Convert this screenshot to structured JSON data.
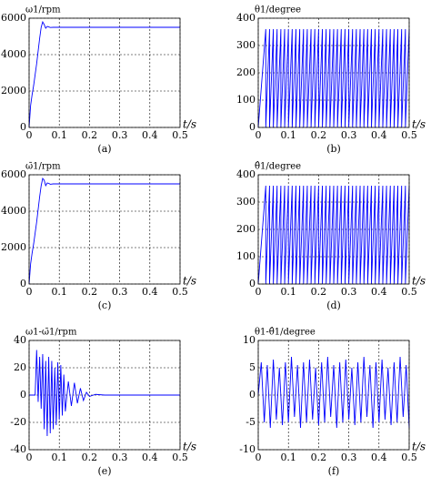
{
  "chart_data": [
    {
      "type": "line",
      "title": "ω1/rpm",
      "caption": "(a)",
      "xlabel": "t/s",
      "x": [
        0,
        0.005,
        0.01,
        0.015,
        0.02,
        0.025,
        0.03,
        0.035,
        0.04,
        0.045,
        0.05,
        0.055,
        0.06,
        0.065,
        0.07,
        0.08,
        0.09,
        0.1,
        0.2,
        0.3,
        0.4,
        0.5
      ],
      "series": [
        {
          "color": "#0000ff",
          "values": [
            0,
            1200,
            1800,
            2300,
            2900,
            3500,
            4200,
            4900,
            5500,
            5800,
            5650,
            5450,
            5550,
            5520,
            5490,
            5500,
            5500,
            5500,
            5500,
            5500,
            5500,
            5500
          ]
        }
      ],
      "xlim": [
        0,
        0.5
      ],
      "xticks": [
        0,
        0.1,
        0.2,
        0.3,
        0.4,
        0.5
      ],
      "ylim": [
        0,
        6000
      ],
      "yticks": [
        0,
        2000,
        4000,
        6000
      ],
      "grid": true
    },
    {
      "type": "line",
      "title": "θ1/degree",
      "caption": "(b)",
      "xlabel": "t/s",
      "x": [
        0,
        0.025,
        0.025,
        0.0375,
        0.0375,
        0.05,
        0.05,
        0.0625,
        0.0625,
        0.075,
        0.075,
        0.0875,
        0.0875,
        0.1,
        0.1,
        0.1125,
        0.1125,
        0.125,
        0.125,
        0.1375,
        0.1375,
        0.15,
        0.15,
        0.1625,
        0.1625,
        0.175,
        0.175,
        0.1875,
        0.1875,
        0.2,
        0.2,
        0.2125,
        0.2125,
        0.225,
        0.225,
        0.2375,
        0.2375,
        0.25,
        0.25,
        0.2625,
        0.2625,
        0.275,
        0.275,
        0.2875,
        0.2875,
        0.3,
        0.3,
        0.3125,
        0.3125,
        0.325,
        0.325,
        0.3375,
        0.3375,
        0.35,
        0.35,
        0.3625,
        0.3625,
        0.375,
        0.375,
        0.3875,
        0.3875,
        0.4,
        0.4,
        0.4125,
        0.4125,
        0.425,
        0.425,
        0.4375,
        0.4375,
        0.45,
        0.45,
        0.4625,
        0.4625,
        0.475,
        0.475,
        0.4875,
        0.4875,
        0.5
      ],
      "series": [
        {
          "color": "#0000ff",
          "values": [
            0,
            360,
            0,
            360,
            0,
            360,
            0,
            360,
            0,
            360,
            0,
            360,
            0,
            360,
            0,
            360,
            0,
            360,
            0,
            360,
            0,
            360,
            0,
            360,
            0,
            360,
            0,
            360,
            0,
            360,
            0,
            360,
            0,
            360,
            0,
            360,
            0,
            360,
            0,
            360,
            0,
            360,
            0,
            360,
            0,
            360,
            0,
            360,
            0,
            360,
            0,
            360,
            0,
            360,
            0,
            360,
            0,
            360,
            0,
            360,
            0,
            360,
            0,
            360,
            0,
            360,
            0,
            360,
            0,
            360,
            0,
            360,
            0,
            360,
            0,
            360,
            0,
            360
          ]
        }
      ],
      "xlim": [
        0,
        0.5
      ],
      "xticks": [
        0,
        0.1,
        0.2,
        0.3,
        0.4,
        0.5
      ],
      "ylim": [
        0,
        400
      ],
      "yticks": [
        0,
        100,
        200,
        300,
        400
      ],
      "grid": true
    },
    {
      "type": "line",
      "title": "ω̄1/rpm",
      "caption": "(c)",
      "xlabel": "t/s",
      "x": [
        0,
        0.005,
        0.01,
        0.015,
        0.02,
        0.025,
        0.03,
        0.035,
        0.04,
        0.045,
        0.05,
        0.055,
        0.06,
        0.065,
        0.07,
        0.08,
        0.09,
        0.1,
        0.2,
        0.3,
        0.4,
        0.5
      ],
      "series": [
        {
          "color": "#0000ff",
          "values": [
            0,
            1100,
            1700,
            2200,
            2800,
            3400,
            4100,
            4800,
            5400,
            5800,
            5700,
            5400,
            5550,
            5530,
            5480,
            5500,
            5500,
            5500,
            5500,
            5500,
            5500,
            5500
          ]
        }
      ],
      "xlim": [
        0,
        0.5
      ],
      "xticks": [
        0,
        0.1,
        0.2,
        0.3,
        0.4,
        0.5
      ],
      "ylim": [
        0,
        6000
      ],
      "yticks": [
        0,
        2000,
        4000,
        6000
      ],
      "grid": true
    },
    {
      "type": "line",
      "title": "θ̂1/degree",
      "caption": "(d)",
      "xlabel": "t/s",
      "x": [
        0,
        0.025,
        0.025,
        0.0375,
        0.0375,
        0.05,
        0.05,
        0.0625,
        0.0625,
        0.075,
        0.075,
        0.0875,
        0.0875,
        0.1,
        0.1,
        0.1125,
        0.1125,
        0.125,
        0.125,
        0.1375,
        0.1375,
        0.15,
        0.15,
        0.1625,
        0.1625,
        0.175,
        0.175,
        0.1875,
        0.1875,
        0.2,
        0.2,
        0.2125,
        0.2125,
        0.225,
        0.225,
        0.2375,
        0.2375,
        0.25,
        0.25,
        0.2625,
        0.2625,
        0.275,
        0.275,
        0.2875,
        0.2875,
        0.3,
        0.3,
        0.3125,
        0.3125,
        0.325,
        0.325,
        0.3375,
        0.3375,
        0.35,
        0.35,
        0.3625,
        0.3625,
        0.375,
        0.375,
        0.3875,
        0.3875,
        0.4,
        0.4,
        0.4125,
        0.4125,
        0.425,
        0.425,
        0.4375,
        0.4375,
        0.45,
        0.45,
        0.4625,
        0.4625,
        0.475,
        0.475,
        0.4875,
        0.4875,
        0.5
      ],
      "series": [
        {
          "color": "#0000ff",
          "values": [
            0,
            360,
            0,
            360,
            0,
            360,
            0,
            360,
            0,
            360,
            0,
            360,
            0,
            360,
            0,
            360,
            0,
            360,
            0,
            360,
            0,
            360,
            0,
            360,
            0,
            360,
            0,
            360,
            0,
            360,
            0,
            360,
            0,
            360,
            0,
            360,
            0,
            360,
            0,
            360,
            0,
            360,
            0,
            360,
            0,
            360,
            0,
            360,
            0,
            360,
            0,
            360,
            0,
            360,
            0,
            360,
            0,
            360,
            0,
            360,
            0,
            360,
            0,
            360,
            0,
            360,
            0,
            360,
            0,
            360,
            0,
            360,
            0,
            360,
            0,
            360,
            0,
            360
          ]
        }
      ],
      "xlim": [
        0,
        0.5
      ],
      "xticks": [
        0,
        0.1,
        0.2,
        0.3,
        0.4,
        0.5
      ],
      "ylim": [
        0,
        400
      ],
      "yticks": [
        0,
        100,
        200,
        300,
        400
      ],
      "grid": true
    },
    {
      "type": "line",
      "title": "ω1-ω̄1/rpm",
      "caption": "(e)",
      "xlabel": "t/s",
      "x": [
        0,
        0.02,
        0.025,
        0.03,
        0.035,
        0.04,
        0.045,
        0.05,
        0.055,
        0.06,
        0.065,
        0.07,
        0.075,
        0.08,
        0.085,
        0.09,
        0.095,
        0.1,
        0.105,
        0.11,
        0.115,
        0.12,
        0.13,
        0.14,
        0.15,
        0.16,
        0.17,
        0.18,
        0.19,
        0.2,
        0.22,
        0.25,
        0.3,
        0.4,
        0.5
      ],
      "series": [
        {
          "color": "#0000ff",
          "values": [
            0,
            0,
            33,
            -5,
            28,
            -10,
            30,
            -25,
            25,
            -30,
            28,
            -28,
            25,
            -25,
            20,
            -22,
            24,
            -18,
            22,
            -15,
            15,
            -12,
            10,
            -8,
            9,
            -6,
            5,
            -4,
            2,
            -1,
            0.5,
            0,
            0,
            0,
            0
          ]
        }
      ],
      "xlim": [
        0,
        0.5
      ],
      "xticks": [
        0,
        0.1,
        0.2,
        0.3,
        0.4,
        0.5
      ],
      "ylim": [
        -40,
        40
      ],
      "yticks": [
        -40,
        -20,
        0,
        20,
        40
      ],
      "grid": true
    },
    {
      "type": "line",
      "title": "θ1-θ̂1/degree",
      "caption": "(f)",
      "xlabel": "t/s",
      "x": [
        0,
        0.01,
        0.02,
        0.03,
        0.04,
        0.05,
        0.06,
        0.07,
        0.08,
        0.09,
        0.1,
        0.11,
        0.12,
        0.13,
        0.14,
        0.15,
        0.16,
        0.17,
        0.18,
        0.19,
        0.2,
        0.21,
        0.22,
        0.23,
        0.24,
        0.25,
        0.26,
        0.27,
        0.28,
        0.29,
        0.3,
        0.31,
        0.32,
        0.33,
        0.34,
        0.35,
        0.36,
        0.37,
        0.38,
        0.39,
        0.4,
        0.41,
        0.42,
        0.43,
        0.44,
        0.45,
        0.46,
        0.47,
        0.48,
        0.49,
        0.5
      ],
      "series": [
        {
          "color": "#0000ff",
          "values": [
            0,
            6,
            -5,
            5.5,
            -6,
            6.5,
            -4.5,
            5,
            -5.5,
            6,
            -5,
            7,
            -4,
            5.5,
            -6,
            6,
            -5,
            6.5,
            -4.5,
            5,
            -5.5,
            6,
            -5,
            7,
            -4,
            5.5,
            -6,
            6,
            -5,
            6.5,
            -4.5,
            5,
            -5.5,
            6,
            -5,
            7,
            -4,
            5.5,
            -6,
            6,
            -5,
            6.5,
            -4.5,
            5,
            -5.5,
            6,
            -5,
            7,
            -4,
            5.5,
            -6
          ]
        }
      ],
      "xlim": [
        0,
        0.5
      ],
      "xticks": [
        0,
        0.1,
        0.2,
        0.3,
        0.4,
        0.5
      ],
      "ylim": [
        -10,
        10
      ],
      "yticks": [
        -10,
        -5,
        0,
        5,
        10
      ],
      "grid": true
    }
  ]
}
